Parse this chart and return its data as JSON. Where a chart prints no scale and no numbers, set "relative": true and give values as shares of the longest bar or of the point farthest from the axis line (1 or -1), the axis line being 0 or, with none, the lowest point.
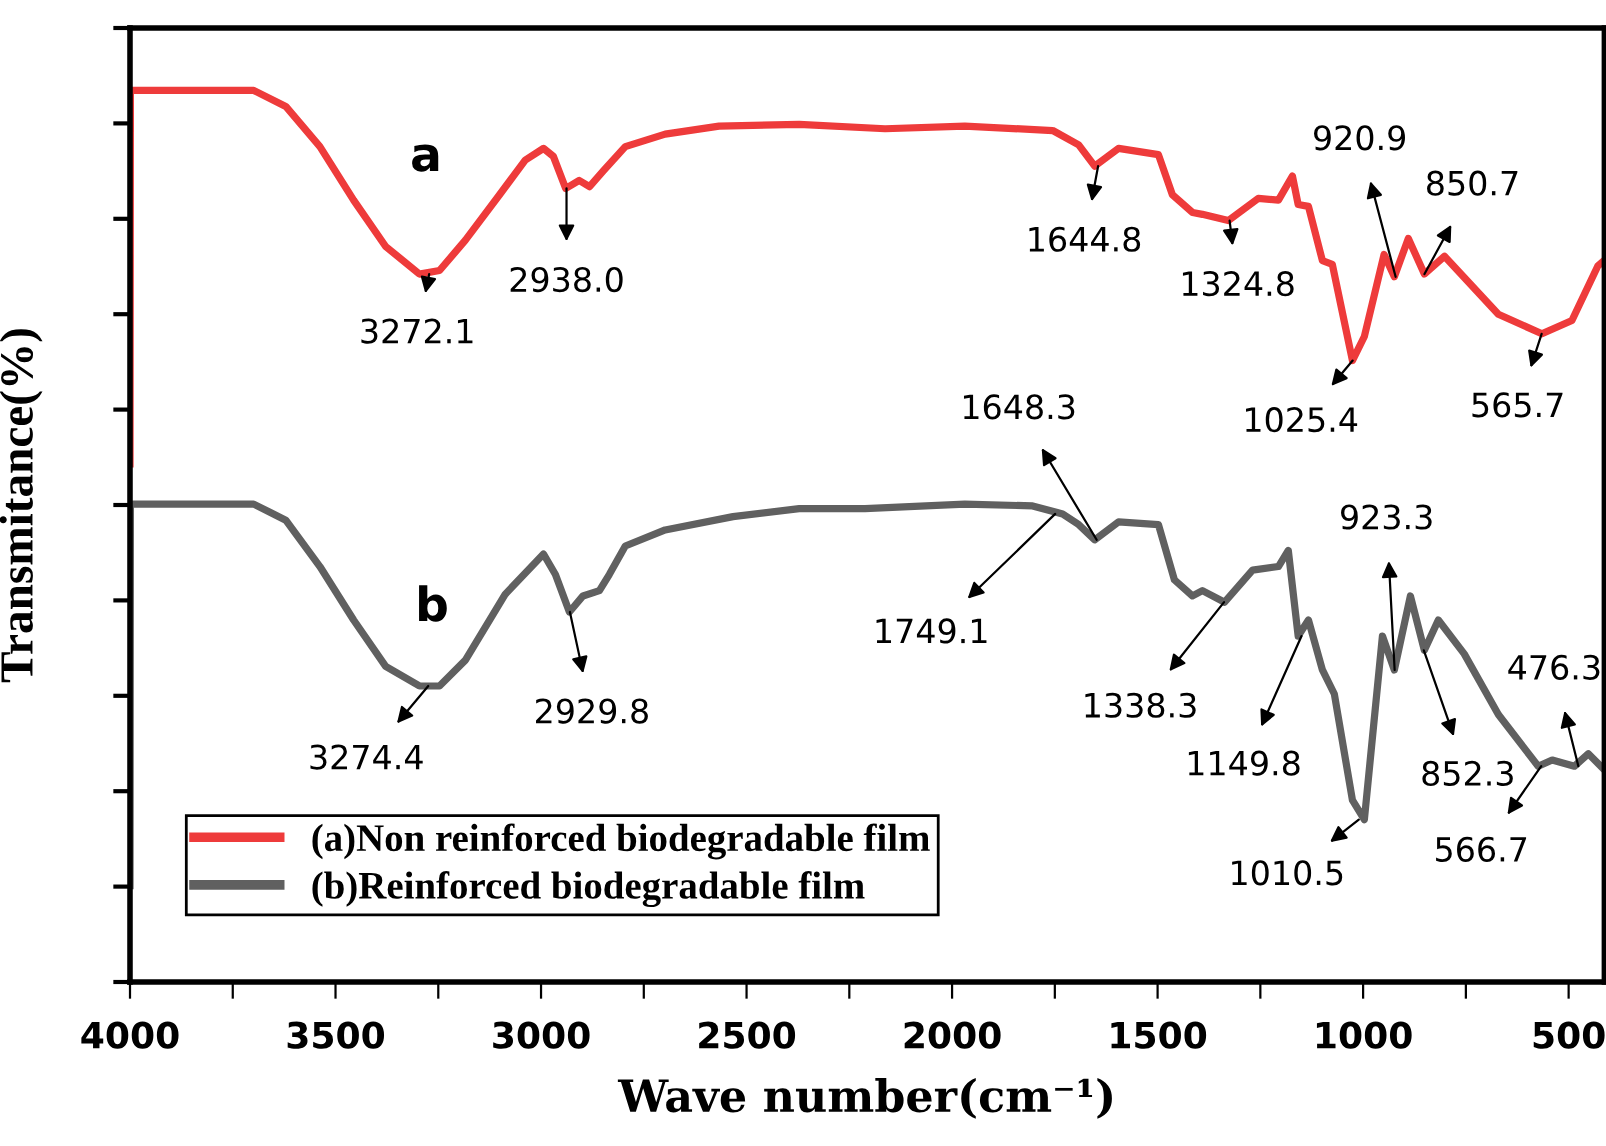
{
  "chart_data": {
    "type": "line",
    "relative": true,
    "xlabel": "Wave number(cm⁻¹)",
    "ylabel": "Transmitance(%)",
    "xlim": [
      4000,
      413
    ],
    "xticks": [
      4000,
      {
        "value": 3750,
        "label": null
      },
      3500,
      {
        "value": 3250,
        "label": null
      },
      3000,
      {
        "value": 2750,
        "label": null
      },
      2500,
      {
        "value": 2250,
        "label": null
      },
      2000,
      {
        "value": 1750,
        "label": null
      },
      1500,
      {
        "value": 1250,
        "label": null
      },
      1000,
      {
        "value": 750,
        "label": null
      },
      500
    ],
    "legend": "bottom left",
    "grid": false,
    "marker": "none",
    "line_style": "solid",
    "series": [
      {
        "name": "(a)Non reinforced biodegradable film",
        "color": "#ee3b3b",
        "x": [
          4000,
          3999,
          3699,
          3621,
          3538,
          3456,
          3378,
          3296,
          3247,
          3184,
          3101,
          3038,
          2994,
          2970,
          2940,
          2907,
          2882,
          2848,
          2795,
          2698,
          2567,
          2372,
          2163,
          1969,
          1755,
          1692,
          1653,
          1595,
          1498,
          1464,
          1415,
          1391,
          1328,
          1255,
          1206,
          1172,
          1158,
          1133,
          1099,
          1075,
          1026,
          997,
          949,
          924,
          890,
          851,
          802,
          671,
          565,
          492,
          429,
          414
        ],
        "values": [
          0.581,
          1.0,
          1.0,
          0.982,
          0.937,
          0.877,
          0.825,
          0.794,
          0.798,
          0.832,
          0.883,
          0.922,
          0.935,
          0.926,
          0.89,
          0.899,
          0.892,
          0.91,
          0.937,
          0.951,
          0.96,
          0.962,
          0.957,
          0.96,
          0.955,
          0.939,
          0.915,
          0.935,
          0.928,
          0.883,
          0.863,
          0.861,
          0.854,
          0.879,
          0.877,
          0.904,
          0.872,
          0.87,
          0.809,
          0.805,
          0.697,
          0.724,
          0.816,
          0.791,
          0.834,
          0.794,
          0.814,
          0.749,
          0.727,
          0.742,
          0.803,
          0.809
        ]
      },
      {
        "name": "(b)Reinforced biodegradable film",
        "color": "#606060",
        "x": [
          4000,
          3999,
          3699,
          3621,
          3538,
          3456,
          3378,
          3296,
          3247,
          3184,
          3087,
          2994,
          2965,
          2931,
          2898,
          2858,
          2834,
          2795,
          2698,
          2533,
          2372,
          2212,
          1969,
          1804,
          1731,
          1692,
          1653,
          1595,
          1498,
          1459,
          1415,
          1391,
          1337,
          1269,
          1206,
          1182,
          1158,
          1133,
          1099,
          1070,
          1026,
          997,
          953,
          924,
          885,
          851,
          817,
          754,
          671,
          574,
          540,
          486,
          452,
          413
        ],
        "values": [
          0.108,
          0.536,
          0.536,
          0.518,
          0.466,
          0.406,
          0.354,
          0.332,
          0.332,
          0.361,
          0.435,
          0.48,
          0.457,
          0.415,
          0.433,
          0.439,
          0.457,
          0.489,
          0.507,
          0.522,
          0.531,
          0.531,
          0.536,
          0.534,
          0.525,
          0.513,
          0.496,
          0.516,
          0.513,
          0.451,
          0.433,
          0.439,
          0.426,
          0.462,
          0.466,
          0.484,
          0.388,
          0.406,
          0.35,
          0.323,
          0.204,
          0.182,
          0.388,
          0.35,
          0.433,
          0.372,
          0.406,
          0.368,
          0.3,
          0.242,
          0.249,
          0.242,
          0.256,
          0.238
        ]
      }
    ],
    "annotations": [
      "a",
      "b",
      {
        "text": "3272.1",
        "x": 3272.1,
        "y": 0.794
      },
      {
        "text": "2938.0",
        "x": 2938.0,
        "y": 0.89
      },
      {
        "text": "1644.8",
        "x": 1644.8,
        "y": 0.915
      },
      {
        "text": "1324.8",
        "x": 1324.8,
        "y": 0.854
      },
      {
        "text": "1025.4",
        "x": 1025.4,
        "y": 0.697
      },
      {
        "text": "920.9",
        "x": 920.9,
        "y": 0.791
      },
      {
        "text": "850.7",
        "x": 850.7,
        "y": 0.794
      },
      {
        "text": "565.7",
        "x": 565.7,
        "y": 0.727
      },
      {
        "text": "3274.4",
        "x": 3274.4,
        "y": 0.332
      },
      {
        "text": "2929.8",
        "x": 2929.8,
        "y": 0.415
      },
      {
        "text": "1749.1",
        "x": 1749.1,
        "y": 0.525
      },
      {
        "text": "1648.3",
        "x": 1648.3,
        "y": 0.496
      },
      {
        "text": "1338.3",
        "x": 1338.3,
        "y": 0.426
      },
      {
        "text": "1149.8",
        "x": 1149.8,
        "y": 0.388
      },
      {
        "text": "1010.5",
        "x": 1010.5,
        "y": 0.182
      },
      {
        "text": "923.3",
        "x": 923.3,
        "y": 0.35
      },
      {
        "text": "852.3",
        "x": 852.3,
        "y": 0.372
      },
      {
        "text": "566.7",
        "x": 566.7,
        "y": 0.242
      },
      {
        "text": "476.3",
        "x": 476.3,
        "y": 0.242
      }
    ]
  }
}
